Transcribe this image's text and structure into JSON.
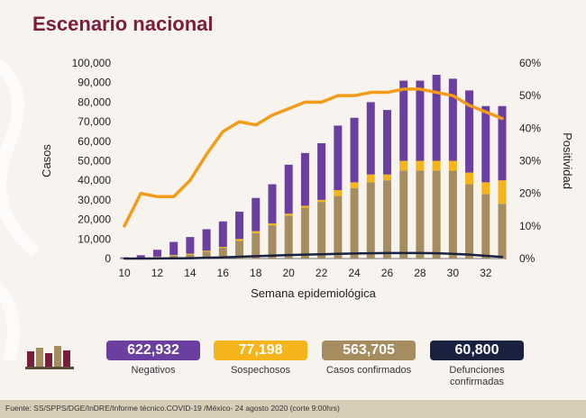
{
  "header": {
    "title": "Escenario nacional"
  },
  "chart_data": {
    "type": "bar",
    "stacked": true,
    "x": [
      10,
      11,
      12,
      13,
      14,
      15,
      16,
      17,
      18,
      19,
      20,
      21,
      22,
      23,
      24,
      25,
      26,
      27,
      28,
      29,
      30,
      31,
      32,
      33
    ],
    "xticks": [
      "10",
      "12",
      "14",
      "16",
      "18",
      "20",
      "22",
      "24",
      "26",
      "28",
      "30",
      "32"
    ],
    "xlabel": "Semana epidemiológica",
    "ylabel": "Casos",
    "y2label": "Positividad",
    "ylim": [
      0,
      100000
    ],
    "y2lim": [
      0,
      60
    ],
    "yticks": [
      "0",
      "10,000",
      "20,000",
      "30,000",
      "40,000",
      "50,000",
      "60,000",
      "70,000",
      "80,000",
      "90,000",
      "100,000"
    ],
    "y2ticks": [
      "0%",
      "10%",
      "20%",
      "30%",
      "40%",
      "50%",
      "60%"
    ],
    "series": [
      {
        "name": "Casos confirmados",
        "type": "bar",
        "color": "#a68d5f",
        "values": [
          200,
          300,
          800,
          1500,
          2000,
          3500,
          5500,
          9000,
          13000,
          17000,
          22000,
          26000,
          29000,
          32000,
          36000,
          39000,
          40000,
          45000,
          45000,
          45000,
          45000,
          38000,
          33000,
          28000
        ]
      },
      {
        "name": "Sospechosos",
        "type": "bar",
        "color": "#f5b41a",
        "values": [
          50,
          100,
          200,
          300,
          500,
          500,
          500,
          1000,
          1000,
          1000,
          1000,
          1000,
          1000,
          3000,
          3000,
          4000,
          3000,
          5000,
          5000,
          5000,
          5000,
          6000,
          6000,
          12000
        ]
      },
      {
        "name": "Negativos",
        "type": "bar",
        "color": "#6b3fa0",
        "values": [
          350,
          1300,
          3500,
          6700,
          8500,
          11000,
          13000,
          14000,
          17000,
          20000,
          25000,
          27000,
          29000,
          33000,
          33000,
          37000,
          33000,
          41000,
          41000,
          44000,
          42000,
          42000,
          39000,
          38000
        ]
      },
      {
        "name": "Positividad",
        "type": "line",
        "axis": "right",
        "color": "#f39c1a",
        "values": [
          10,
          20,
          19,
          19,
          24,
          32,
          39,
          42,
          41,
          44,
          46,
          48,
          48,
          50,
          50,
          51,
          51,
          52,
          52,
          51,
          50,
          47,
          45,
          43
        ]
      },
      {
        "name": "Defunciones",
        "type": "line",
        "color": "#1a2240",
        "values": [
          0,
          10,
          50,
          100,
          200,
          400,
          600,
          900,
          1200,
          1500,
          1800,
          2000,
          2200,
          2400,
          2600,
          2700,
          2800,
          2800,
          2800,
          2700,
          2400,
          2000,
          1400,
          800
        ]
      }
    ]
  },
  "stats": [
    {
      "value": "622,932",
      "label": "Negativos",
      "color": "#6b3fa0",
      "text_color": "#ffffff"
    },
    {
      "value": "77,198",
      "label": "Sospechosos",
      "color": "#f5b41a",
      "text_color": "#ffffff"
    },
    {
      "value": "563,705",
      "label": "Casos confirmados",
      "color": "#a68d5f",
      "text_color": "#ffffff"
    },
    {
      "value": "60,800",
      "label": "Defunciones confirmadas",
      "color": "#1a2240",
      "text_color": "#ffffff"
    }
  ],
  "footer": {
    "source": "Fuente: SS/SPPS/DGE/InDRE/Informe técnico.COVID-19 /México- 24 agosto 2020 (corte 9:00hrs)"
  }
}
